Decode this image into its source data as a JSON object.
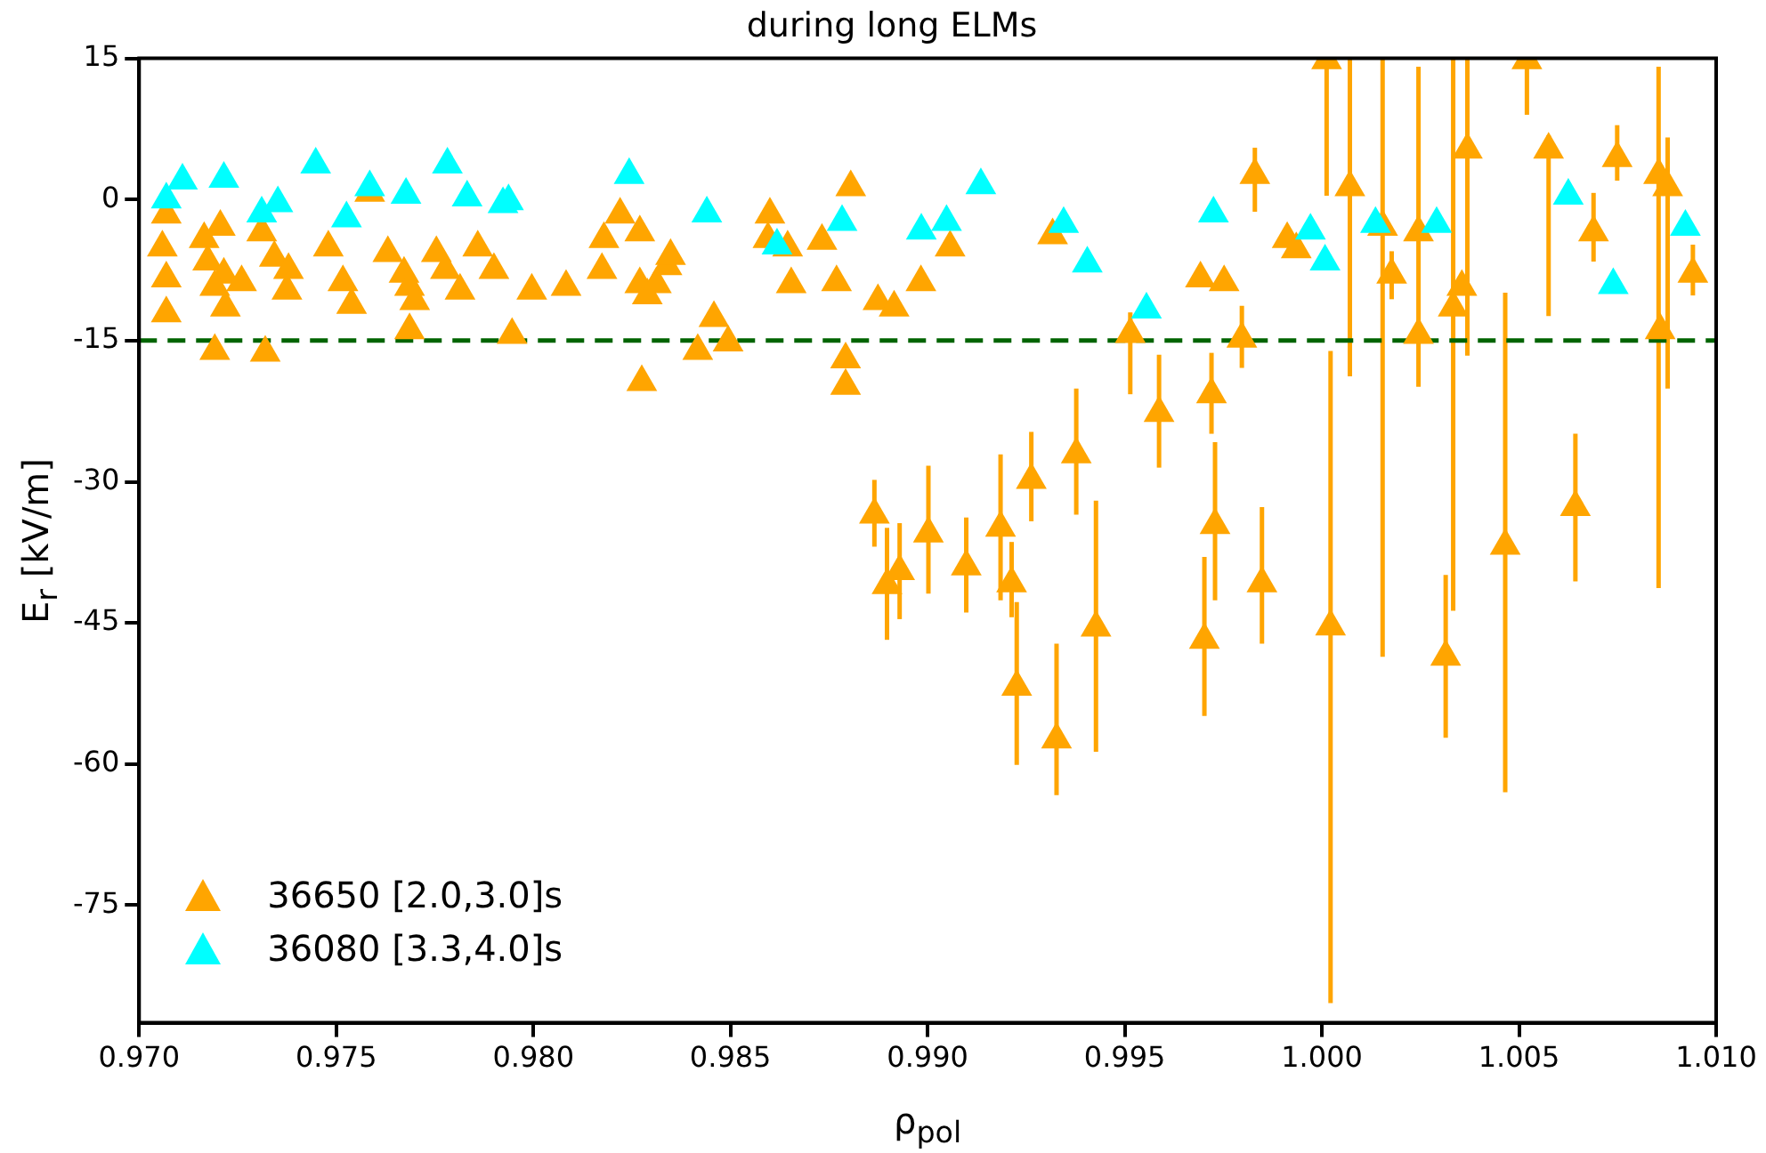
{
  "chart_data": {
    "type": "scatter",
    "title": "during long ELMs",
    "xlabel": "ρ$_{pol}$",
    "ylabel": "E$_{r}$ [kV/m]",
    "xlim": [
      0.97,
      1.01
    ],
    "xticks": [
      {
        "value": 0.97,
        "label": "0.970"
      },
      {
        "value": 0.975,
        "label": "0.975"
      },
      {
        "value": 0.98,
        "label": "0.980"
      },
      {
        "value": 0.985,
        "label": "0.985"
      },
      {
        "value": 0.99,
        "label": "0.990"
      },
      {
        "value": 0.995,
        "label": "0.995"
      },
      {
        "value": 1.0,
        "label": "1.000"
      },
      {
        "value": 1.005,
        "label": "1.005"
      },
      {
        "value": 1.01,
        "label": "1.010"
      }
    ],
    "ylim": [
      -87.5,
      15
    ],
    "yticks": [
      -75,
      -60,
      -45,
      -30,
      -15,
      0,
      15
    ],
    "marker": "triangle",
    "legend": "bottom left",
    "ref_lines": [
      {
        "axis": "y",
        "value": -15,
        "color": "#006400",
        "line_style": "dashed"
      }
    ],
    "series": [
      {
        "name": "36650 [2.0,3.0]s",
        "color": "#ffa500",
        "x": [
          0.97069,
          0.97059,
          0.97069,
          0.97069,
          0.97165,
          0.97206,
          0.97174,
          0.97215,
          0.97192,
          0.97219,
          0.9726,
          0.97192,
          0.9732,
          0.97311,
          0.97343,
          0.97379,
          0.97375,
          0.9748,
          0.97517,
          0.97539,
          0.97585,
          0.97631,
          0.97672,
          0.97686,
          0.97699,
          0.97686,
          0.97754,
          0.97777,
          0.97814,
          0.97859,
          0.979,
          0.97946,
          0.97996,
          0.98083,
          0.98174,
          0.98179,
          0.9822,
          0.9827,
          0.9827,
          0.98289,
          0.98312,
          0.98339,
          0.98275,
          0.98348,
          0.98417,
          0.98458,
          0.98494,
          0.986,
          0.98595,
          0.98645,
          0.98654,
          0.98732,
          0.98769,
          0.98805,
          0.98874,
          0.98915,
          0.98983,
          0.99057,
          0.99317,
          0.99514,
          0.99692,
          0.98792,
          0.98792,
          0.9983,
          0.99752,
          0.99797,
          0.9972,
          0.99912,
          0.99935,
          1.00012,
          1.00071,
          1.00154,
          1.00177,
          1.00245,
          1.00245,
          1.00333,
          1.00355,
          1.00369,
          1.00314,
          1.00465,
          1.0052,
          1.00575,
          1.00689,
          1.00749,
          1.00854,
          1.00877,
          1.00858,
          1.00941,
          1.00643,
          1.00022,
          0.98865,
          0.98897,
          0.98929,
          0.99002,
          0.99098,
          0.99185,
          0.99213,
          0.99226,
          0.99263,
          0.99327,
          0.99377,
          0.99427,
          0.99587,
          0.99729,
          0.99702,
          0.99848
        ],
        "values": [
          -1.6,
          -5.1,
          -8.4,
          -12.1,
          -4.2,
          -2.9,
          -6.6,
          -8,
          -9.3,
          -11.5,
          -8.8,
          -16.1,
          -16.3,
          -3.5,
          -6.2,
          -7.5,
          -9.7,
          -5.1,
          -8.8,
          -11.2,
          0.7,
          -5.7,
          -7.9,
          -9.3,
          -10.8,
          -13.9,
          -5.7,
          -7.5,
          -9.7,
          -5.1,
          -7.5,
          -14.4,
          -9.7,
          -9.3,
          -7.5,
          -4.2,
          -1.6,
          -3.5,
          -9,
          -10.2,
          -9,
          -7.1,
          -19.4,
          -6,
          -16.1,
          -12.6,
          -15.2,
          -1.6,
          -4.2,
          -5.1,
          -9,
          -4.4,
          -8.8,
          1.3,
          -10.8,
          -11.5,
          -8.8,
          -5.1,
          -3.8,
          -14.3,
          -8.4,
          -17,
          -19.8,
          2.6,
          -8.8,
          -14.8,
          -20.7,
          -4.2,
          -5.3,
          14.8,
          1.3,
          -2.9,
          -8,
          -3.5,
          -14.4,
          -11.5,
          -9.3,
          5.3,
          -48.6,
          -36.8,
          14.8,
          5.3,
          -3.5,
          4.4,
          2.6,
          1.3,
          -13.9,
          -7.9,
          -32.7,
          -45.4,
          -33.5,
          -41,
          -39.5,
          -35.5,
          -39,
          -34.9,
          -40.8,
          -51.8,
          -29.8,
          -57.4,
          -27.1,
          -45.5,
          -22.7,
          -34.6,
          -46.8,
          -40.8
        ],
        "errors": [
          null,
          null,
          null,
          null,
          null,
          null,
          null,
          null,
          null,
          null,
          null,
          null,
          null,
          null,
          null,
          null,
          null,
          null,
          null,
          null,
          null,
          null,
          null,
          null,
          null,
          null,
          null,
          null,
          null,
          null,
          null,
          null,
          null,
          null,
          null,
          null,
          null,
          null,
          null,
          null,
          null,
          null,
          null,
          null,
          null,
          null,
          null,
          null,
          null,
          null,
          null,
          null,
          null,
          null,
          null,
          null,
          null,
          null,
          null,
          [
            -20.7,
            -12
          ],
          null,
          null,
          null,
          [
            -1.3,
            5.5
          ],
          null,
          [
            -17.9,
            -11.3
          ],
          [
            -24.9,
            -16.3
          ],
          null,
          null,
          [
            0.4,
            15
          ],
          [
            -18.8,
            15
          ],
          [
            -48.6,
            15
          ],
          [
            -10.6,
            -5.5
          ],
          [
            -19.9,
            14.1
          ],
          null,
          [
            -43.7,
            15
          ],
          null,
          [
            -16.6,
            15
          ],
          [
            -57.2,
            -39.9
          ],
          [
            -63,
            -9.9
          ],
          [
            9,
            15
          ],
          [
            -12.4,
            6.8
          ],
          [
            -6.6,
            0.7
          ],
          [
            2,
            7.9
          ],
          [
            -41.3,
            14.1
          ],
          [
            -20.1,
            6.6
          ],
          null,
          [
            -10.2,
            -4.8
          ],
          [
            -40.6,
            -24.9
          ],
          [
            -85.4,
            -16.1
          ],
          [
            -36.9,
            -29.8
          ],
          [
            -46.8,
            -34.9
          ],
          [
            -44.6,
            -34.4
          ],
          [
            -41.9,
            -28.3
          ],
          [
            -43.9,
            -33.8
          ],
          [
            -42.6,
            -27.1
          ],
          [
            -44.4,
            -36.4
          ],
          [
            -60.1,
            -42.8
          ],
          [
            -34.2,
            -24.7
          ],
          [
            -63.3,
            -47.2
          ],
          [
            -33.5,
            -20.1
          ],
          [
            -58.7,
            -32
          ],
          [
            -28.5,
            -16.5
          ],
          [
            -42.6,
            -25.8
          ],
          [
            -54.9,
            -38
          ],
          [
            -47.2,
            -32.7
          ]
        ]
      },
      {
        "name": "36080 [3.3,4.0]s",
        "color": "#00ffff",
        "x": [
          0.97069,
          0.9711,
          0.97215,
          0.97311,
          0.97352,
          0.97448,
          0.97526,
          0.97585,
          0.97677,
          0.97782,
          0.97832,
          0.97923,
          0.97937,
          0.98243,
          0.9844,
          0.98618,
          0.98783,
          0.98984,
          0.99048,
          0.99135,
          0.99345,
          0.99405,
          0.99555,
          0.99725,
          0.99971,
          1.00008,
          1.00136,
          1.00291,
          1.00625,
          1.00739,
          1.00922
        ],
        "values": [
          0,
          2,
          2.2,
          -1.5,
          -0.4,
          3.7,
          -2,
          1.3,
          0.5,
          3.7,
          0.2,
          -0.5,
          -0.2,
          2.6,
          -1.5,
          -4.9,
          -2.4,
          -3.3,
          -2.4,
          1.5,
          -2.6,
          -6.8,
          -11.7,
          -1.5,
          -3.3,
          -6.6,
          -2.6,
          -2.6,
          0.4,
          -9.1,
          -2.9
        ]
      }
    ]
  }
}
